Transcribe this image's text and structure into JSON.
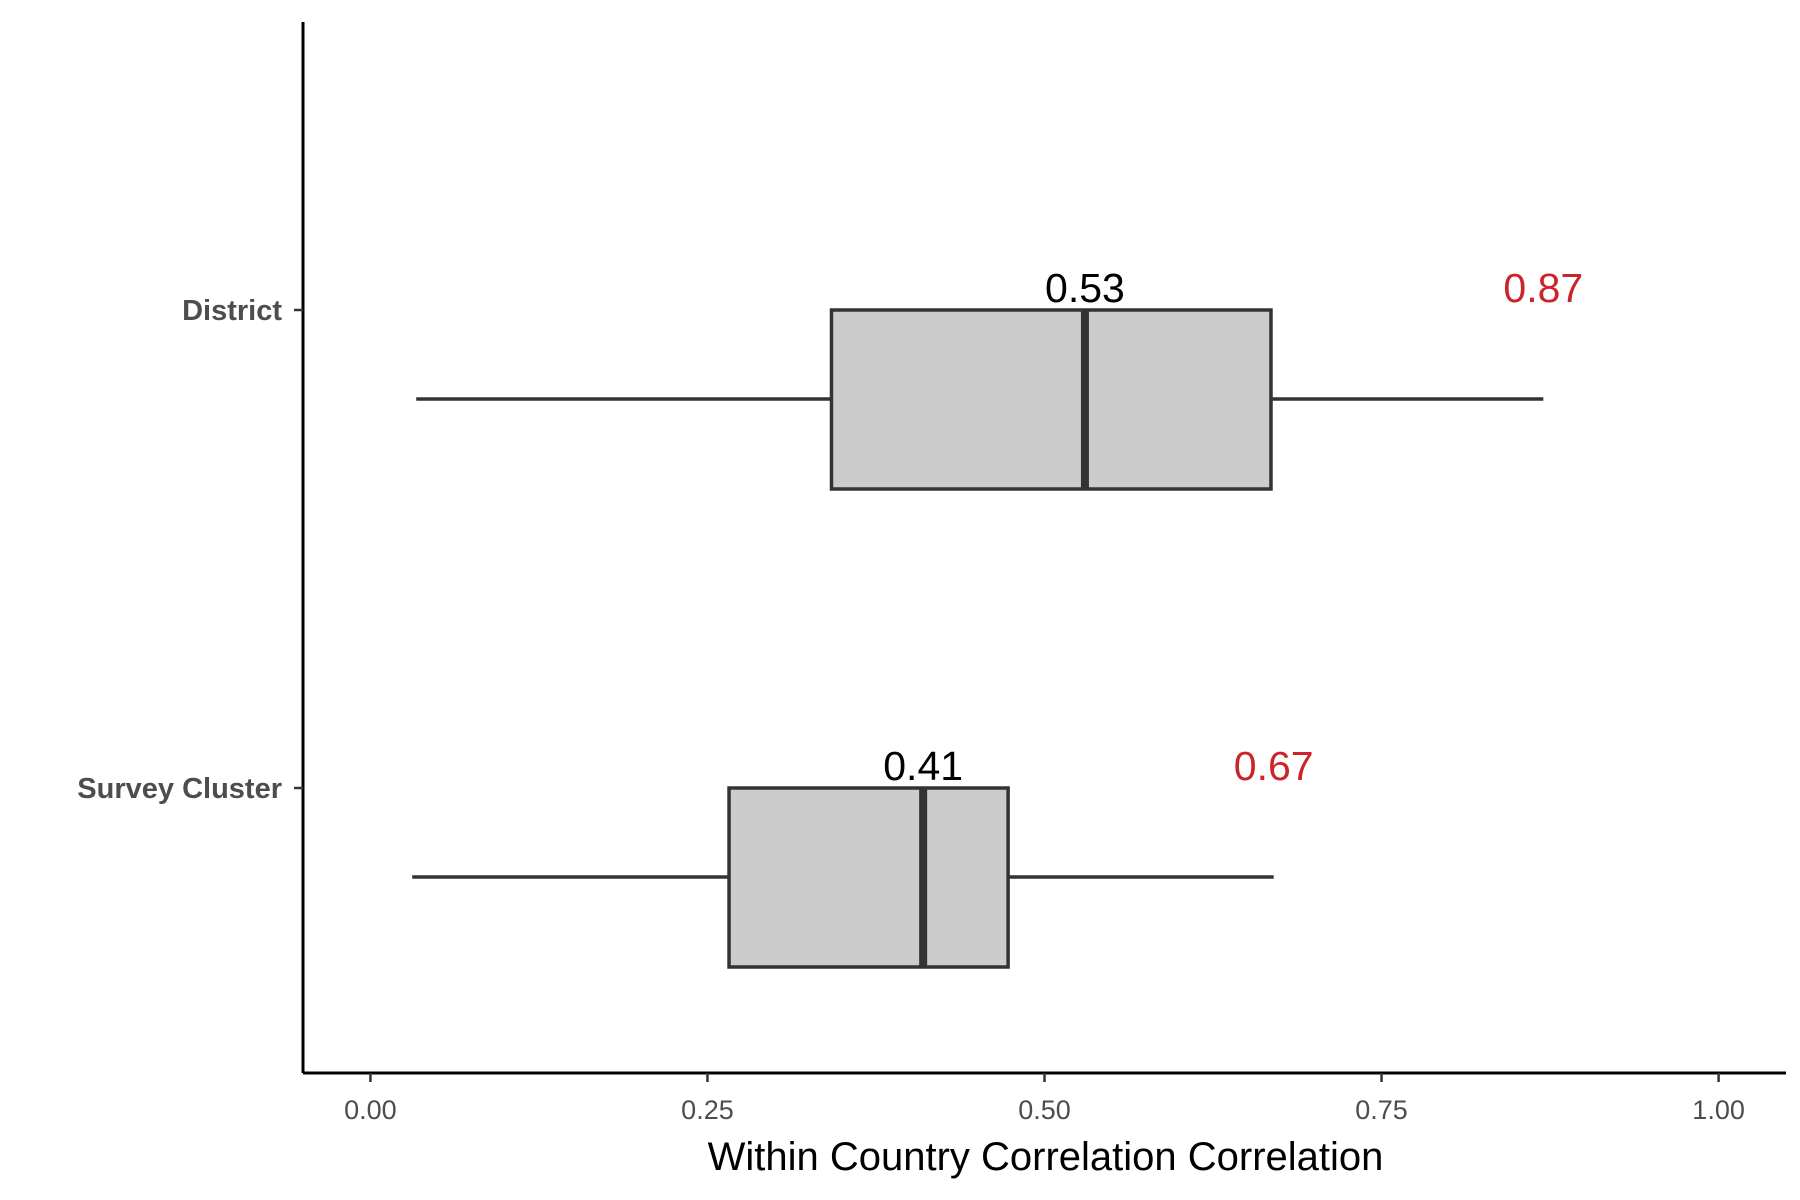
{
  "chart_data": {
    "type": "boxplot",
    "orientation": "horizontal",
    "xlabel": "Within Country Correlation Correlation",
    "xlim": [
      -0.05,
      1.05
    ],
    "x_ticks": [
      0.0,
      0.25,
      0.5,
      0.75,
      1.0
    ],
    "x_tick_labels": [
      "0.00",
      "0.25",
      "0.50",
      "0.75",
      "1.00"
    ],
    "categories": [
      "District",
      "Survey Cluster"
    ],
    "boxes": [
      {
        "category": "District",
        "min": 0.034,
        "q1": 0.342,
        "median": 0.53,
        "q3": 0.668,
        "max": 0.87,
        "median_label": "0.53",
        "max_label": "0.87"
      },
      {
        "category": "Survey Cluster",
        "min": 0.031,
        "q1": 0.266,
        "median": 0.41,
        "q3": 0.473,
        "max": 0.67,
        "median_label": "0.41",
        "max_label": "0.67"
      }
    ],
    "colors": {
      "box_fill": "#cccccc",
      "box_stroke": "#333333",
      "median_text": "#000000",
      "max_text": "#cc2529",
      "axis": "#000000"
    },
    "grid": false,
    "legend": "none"
  }
}
